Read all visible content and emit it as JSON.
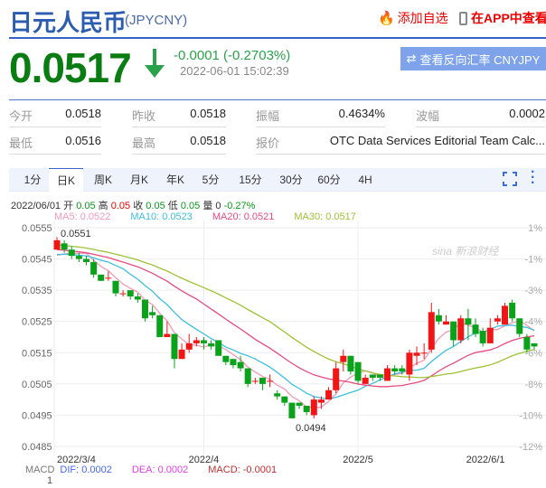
{
  "header": {
    "title": "日元人民币",
    "code": "(JPYCNY)",
    "add_fav": "添加自选",
    "view_app": "在APP中查看"
  },
  "quote": {
    "price": "0.0517",
    "change": "-0.0001 (-0.2703%)",
    "timestamp": "2022-06-01 15:02:39",
    "reverse_button": "查看反向汇率 CNYJPY",
    "direction": "down",
    "color": "#0a7d12"
  },
  "stats": [
    [
      {
        "label": "今开",
        "value": "0.0518"
      },
      {
        "label": "昨收",
        "value": "0.0518"
      },
      {
        "label": "振幅",
        "value": "0.4634%"
      },
      {
        "label": "波幅",
        "value": "0.0002"
      }
    ],
    [
      {
        "label": "最低",
        "value": "0.0516"
      },
      {
        "label": "最高",
        "value": "0.0518"
      },
      {
        "label": "报价",
        "value": "OTC Data Services Editorial Team Calc..."
      }
    ]
  ],
  "tabs": [
    "1分",
    "日K",
    "周K",
    "月K",
    "年K",
    "5分",
    "15分",
    "30分",
    "60分",
    "4H"
  ],
  "active_tab": "日K",
  "info": {
    "date": "2022/06/01",
    "open_l": "开",
    "open": "0.05",
    "high_l": "高",
    "high": "0.05",
    "close_l": "收",
    "close": "0.05",
    "low_l": "低",
    "low": "0.05",
    "vol_l": "量",
    "vol": "0",
    "pct": "-0.27%"
  },
  "ma": [
    {
      "label": "MA5: 0.0522",
      "color": "#f29ab5"
    },
    {
      "label": "MA10: 0.0523",
      "color": "#3cc0e0"
    },
    {
      "label": "MA20: 0.0521",
      "color": "#e84a7f"
    },
    {
      "label": "MA30: 0.0517",
      "color": "#9dc234"
    }
  ],
  "macd": {
    "title": "MACD",
    "dif": "DIF: 0.0002",
    "dea": "DEA: 0.0002",
    "macd": "MACD: -0.0001",
    "axis_top": "1"
  },
  "chart_data": {
    "type": "candlestick",
    "ylim": [
      0.0485,
      0.0555
    ],
    "y_ticks": [
      "0.0555",
      "0.0545",
      "0.0535",
      "0.0525",
      "0.0515",
      "0.0505",
      "0.0495",
      "0.0485"
    ],
    "y_right_ticks": [
      "1%",
      "-1%",
      "-3%",
      "-4%",
      "-6%",
      "-8%",
      "-10%",
      "-12%"
    ],
    "x_labels": [
      {
        "label": "2022/3/4",
        "index": 0
      },
      {
        "label": "2022/4",
        "index": 20
      },
      {
        "label": "2022/5",
        "index": 41
      },
      {
        "label": "2022/6/1",
        "index": 61
      }
    ],
    "max_label": "0.0551",
    "min_label": "0.0494",
    "watermark": "sina 新浪财经",
    "ohlc": [
      [
        0.0548,
        0.0551,
        0.0552,
        0.0548
      ],
      [
        0.055,
        0.0548,
        0.0551,
        0.0547
      ],
      [
        0.0548,
        0.0546,
        0.0549,
        0.0545
      ],
      [
        0.0546,
        0.0545,
        0.0547,
        0.0544
      ],
      [
        0.0545,
        0.0544,
        0.0546,
        0.0543
      ],
      [
        0.0544,
        0.054,
        0.0545,
        0.0539
      ],
      [
        0.054,
        0.0538,
        0.054,
        0.0538
      ],
      [
        0.0539,
        0.0539,
        0.0541,
        0.0538
      ],
      [
        0.0538,
        0.0534,
        0.0538,
        0.0533
      ],
      [
        0.0534,
        0.0534,
        0.0535,
        0.0533
      ],
      [
        0.0535,
        0.0533,
        0.0535,
        0.0532
      ],
      [
        0.0533,
        0.0532,
        0.0534,
        0.0531
      ],
      [
        0.0532,
        0.0526,
        0.0532,
        0.0525
      ],
      [
        0.0528,
        0.0527,
        0.053,
        0.0526
      ],
      [
        0.0527,
        0.052,
        0.0527,
        0.052
      ],
      [
        0.052,
        0.0521,
        0.0525,
        0.0521
      ],
      [
        0.0521,
        0.0513,
        0.0521,
        0.051
      ],
      [
        0.0513,
        0.0516,
        0.0518,
        0.0513
      ],
      [
        0.0516,
        0.0518,
        0.0521,
        0.0515
      ],
      [
        0.0518,
        0.0519,
        0.052,
        0.0517
      ],
      [
        0.0519,
        0.0518,
        0.052,
        0.0516
      ],
      [
        0.0518,
        0.0517,
        0.0519,
        0.0516
      ],
      [
        0.0519,
        0.0514,
        0.0519,
        0.0514
      ],
      [
        0.0514,
        0.0512,
        0.0514,
        0.0511
      ],
      [
        0.0513,
        0.0511,
        0.0513,
        0.051
      ],
      [
        0.0512,
        0.051,
        0.0514,
        0.0509
      ],
      [
        0.051,
        0.0505,
        0.051,
        0.0504
      ],
      [
        0.0506,
        0.0506,
        0.0507,
        0.0505
      ],
      [
        0.0507,
        0.0505,
        0.0507,
        0.0503
      ],
      [
        0.0506,
        0.0506,
        0.0508,
        0.0504
      ],
      [
        0.0502,
        0.0501,
        0.0503,
        0.05
      ],
      [
        0.0501,
        0.0499,
        0.0501,
        0.0498
      ],
      [
        0.0499,
        0.0494,
        0.0499,
        0.0494
      ],
      [
        0.0499,
        0.0498,
        0.0499,
        0.0497
      ],
      [
        0.0498,
        0.0496,
        0.0498,
        0.0495
      ],
      [
        0.0495,
        0.05,
        0.0501,
        0.0494
      ],
      [
        0.0499,
        0.05,
        0.0501,
        0.0497
      ],
      [
        0.05,
        0.0503,
        0.0504,
        0.05
      ],
      [
        0.0503,
        0.051,
        0.0512,
        0.0502
      ],
      [
        0.0512,
        0.0514,
        0.0516,
        0.0509
      ],
      [
        0.0514,
        0.0509,
        0.0514,
        0.0508
      ],
      [
        0.0512,
        0.0506,
        0.0512,
        0.0505
      ],
      [
        0.0505,
        0.0507,
        0.0508,
        0.0505
      ],
      [
        0.0508,
        0.0507,
        0.0508,
        0.0506
      ],
      [
        0.0508,
        0.0507,
        0.0508,
        0.0506
      ],
      [
        0.0506,
        0.051,
        0.0511,
        0.0506
      ],
      [
        0.051,
        0.0509,
        0.0511,
        0.0508
      ],
      [
        0.051,
        0.0509,
        0.0511,
        0.0508
      ],
      [
        0.0508,
        0.0515,
        0.0516,
        0.0506
      ],
      [
        0.0514,
        0.0515,
        0.0517,
        0.0511
      ],
      [
        0.0515,
        0.0515,
        0.0518,
        0.0513
      ],
      [
        0.0516,
        0.0528,
        0.0531,
        0.0515
      ],
      [
        0.0527,
        0.0525,
        0.0529,
        0.0524
      ],
      [
        0.0524,
        0.0525,
        0.0527,
        0.0524
      ],
      [
        0.0525,
        0.0519,
        0.0525,
        0.0517
      ],
      [
        0.0519,
        0.0526,
        0.0527,
        0.0518
      ],
      [
        0.0526,
        0.0524,
        0.0529,
        0.0519
      ],
      [
        0.0524,
        0.0521,
        0.0526,
        0.052
      ],
      [
        0.0522,
        0.0518,
        0.0523,
        0.0517
      ],
      [
        0.0518,
        0.0523,
        0.0526,
        0.0518
      ],
      [
        0.0525,
        0.0526,
        0.0527,
        0.0524
      ],
      [
        0.0524,
        0.053,
        0.0531,
        0.0524
      ],
      [
        0.0531,
        0.0526,
        0.0532,
        0.0525
      ],
      [
        0.0526,
        0.0521,
        0.0526,
        0.052
      ],
      [
        0.052,
        0.0516,
        0.0521,
        0.0515
      ],
      [
        0.0518,
        0.0517,
        0.0518,
        0.0516
      ]
    ]
  }
}
